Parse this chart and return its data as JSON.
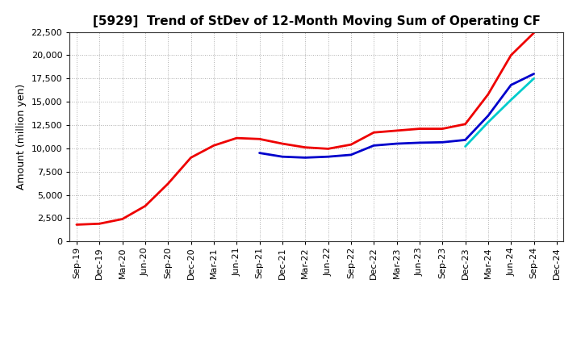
{
  "title": "[5929]  Trend of StDev of 12-Month Moving Sum of Operating CF",
  "ylabel": "Amount (million yen)",
  "background_color": "#ffffff",
  "grid_color": "#999999",
  "ylim": [
    0,
    22500
  ],
  "yticks": [
    0,
    2500,
    5000,
    7500,
    10000,
    12500,
    15000,
    17500,
    20000,
    22500
  ],
  "x_labels": [
    "Sep-19",
    "Dec-19",
    "Mar-20",
    "Jun-20",
    "Sep-20",
    "Dec-20",
    "Mar-21",
    "Jun-21",
    "Sep-21",
    "Dec-21",
    "Mar-22",
    "Jun-22",
    "Sep-22",
    "Dec-22",
    "Mar-23",
    "Jun-23",
    "Sep-23",
    "Dec-23",
    "Mar-24",
    "Jun-24",
    "Sep-24",
    "Dec-24"
  ],
  "series_3y": [
    1800,
    1900,
    2400,
    3800,
    6200,
    9000,
    10300,
    11100,
    11000,
    10500,
    10100,
    9950,
    10400,
    11700,
    11900,
    12100,
    12100,
    12600,
    15800,
    20000,
    22400,
    null
  ],
  "series_5y": [
    null,
    null,
    null,
    null,
    null,
    null,
    null,
    null,
    9500,
    9100,
    9000,
    9100,
    9300,
    10300,
    10500,
    10600,
    10650,
    10900,
    13500,
    16800,
    18000,
    null
  ],
  "series_7y": [
    null,
    null,
    null,
    null,
    null,
    null,
    null,
    null,
    null,
    null,
    null,
    null,
    null,
    null,
    null,
    null,
    null,
    10200,
    12800,
    15200,
    17500,
    null
  ],
  "series_10y": [
    null,
    null,
    null,
    null,
    null,
    null,
    null,
    null,
    null,
    null,
    null,
    null,
    null,
    null,
    null,
    null,
    null,
    null,
    null,
    null,
    null,
    null
  ],
  "color_3y": "#ee0000",
  "color_5y": "#0000cc",
  "color_7y": "#00cccc",
  "color_10y": "#00aa00",
  "linewidth": 2.0,
  "title_fontsize": 11,
  "tick_fontsize": 8,
  "ylabel_fontsize": 9,
  "legend_fontsize": 9
}
